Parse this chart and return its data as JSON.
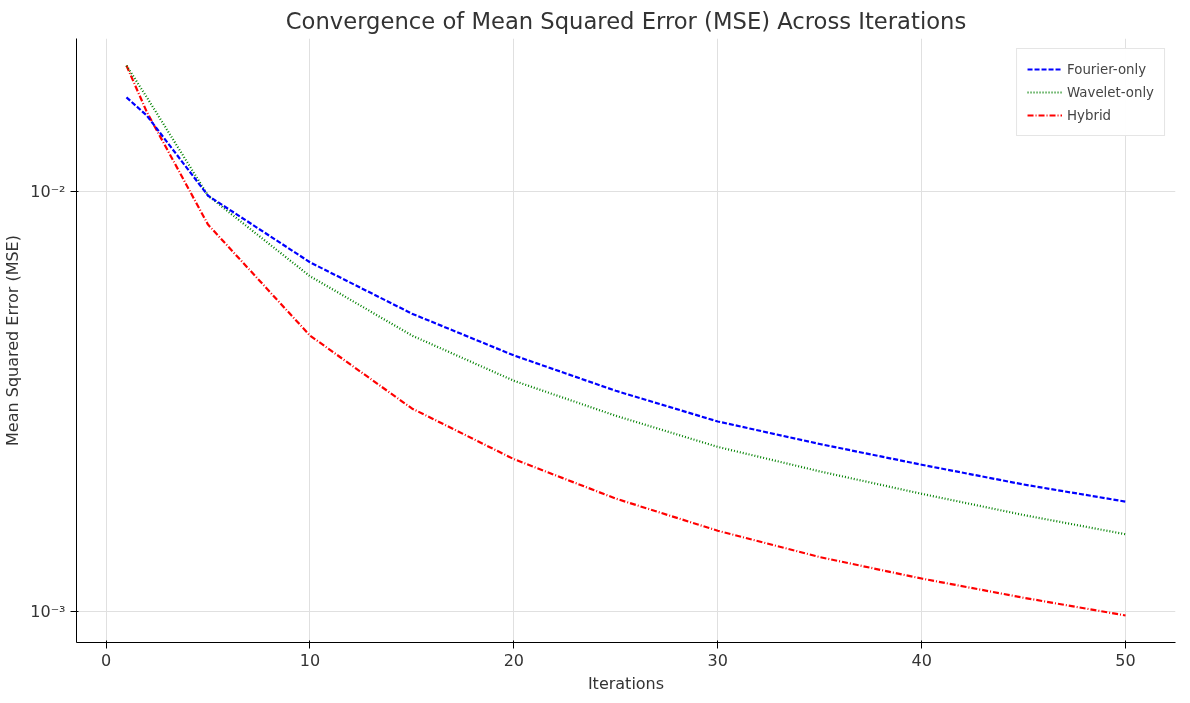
{
  "chart_data": {
    "type": "line",
    "title": "Convergence of Mean Squared Error (MSE) Across Iterations",
    "xlabel": "Iterations",
    "ylabel": "Mean Squared Error (MSE)",
    "x": [
      1,
      2,
      5,
      10,
      15,
      20,
      25,
      30,
      35,
      40,
      45,
      50
    ],
    "series": [
      {
        "name": "Fourier-only",
        "color": "#0000ff",
        "line_style": "dashed",
        "values": [
          0.0168,
          0.0152,
          0.0098,
          0.0068,
          0.00513,
          0.00408,
          0.00336,
          0.00284,
          0.00251,
          0.00224,
          0.00201,
          0.00183
        ]
      },
      {
        "name": "Wavelet-only",
        "color": "#008000",
        "line_style": "dotted",
        "values": [
          0.02,
          0.0168,
          0.0098,
          0.0063,
          0.00455,
          0.00355,
          0.00293,
          0.00247,
          0.00216,
          0.00191,
          0.0017,
          0.00153
        ]
      },
      {
        "name": "Hybrid",
        "color": "#ff0000",
        "line_style": "dashdot",
        "values": [
          0.02,
          0.0155,
          0.00836,
          0.00455,
          0.00305,
          0.00231,
          0.00186,
          0.00156,
          0.00135,
          0.0012,
          0.00108,
          0.00098
        ]
      }
    ],
    "log": "y",
    "xlim": [
      -1.45,
      52.45
    ],
    "ylim": [
      0.000845,
      0.0232
    ],
    "xticks": [
      0,
      10,
      20,
      30,
      40,
      50
    ],
    "yticks": [
      {
        "value": 0.001,
        "label": "10⁻³"
      },
      {
        "value": 0.01,
        "label": "10⁻²"
      }
    ],
    "grid": true,
    "legend": "top right",
    "marker": "none"
  }
}
